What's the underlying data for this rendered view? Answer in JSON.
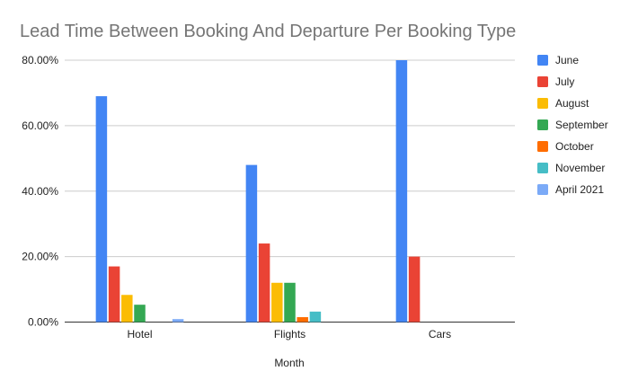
{
  "chart_data": {
    "type": "bar",
    "title": "Lead Time Between Booking And Departure Per Booking Type",
    "xlabel": "Month",
    "ylabel": "",
    "categories": [
      "Hotel",
      "Flights",
      "Cars"
    ],
    "ylim": [
      0,
      80
    ],
    "yticks": [
      0,
      20,
      40,
      60,
      80
    ],
    "ytick_labels": [
      "0.00%",
      "20.00%",
      "40.00%",
      "60.00%",
      "80.00%"
    ],
    "grid": true,
    "legend": "right",
    "series": [
      {
        "name": "June",
        "color": "#4285F4",
        "values": [
          69,
          48,
          80
        ]
      },
      {
        "name": "July",
        "color": "#EA4335",
        "values": [
          17,
          24,
          20
        ]
      },
      {
        "name": "August",
        "color": "#FBBC04",
        "values": [
          8.3,
          12,
          0
        ]
      },
      {
        "name": "September",
        "color": "#34A853",
        "values": [
          5.3,
          12,
          0
        ]
      },
      {
        "name": "October",
        "color": "#FF6D01",
        "values": [
          0,
          1.5,
          0
        ]
      },
      {
        "name": "November",
        "color": "#46BDC6",
        "values": [
          0,
          3.2,
          0
        ]
      },
      {
        "name": "April 2021",
        "color": "#7BAAF7",
        "values": [
          0.9,
          0,
          0
        ]
      }
    ]
  }
}
